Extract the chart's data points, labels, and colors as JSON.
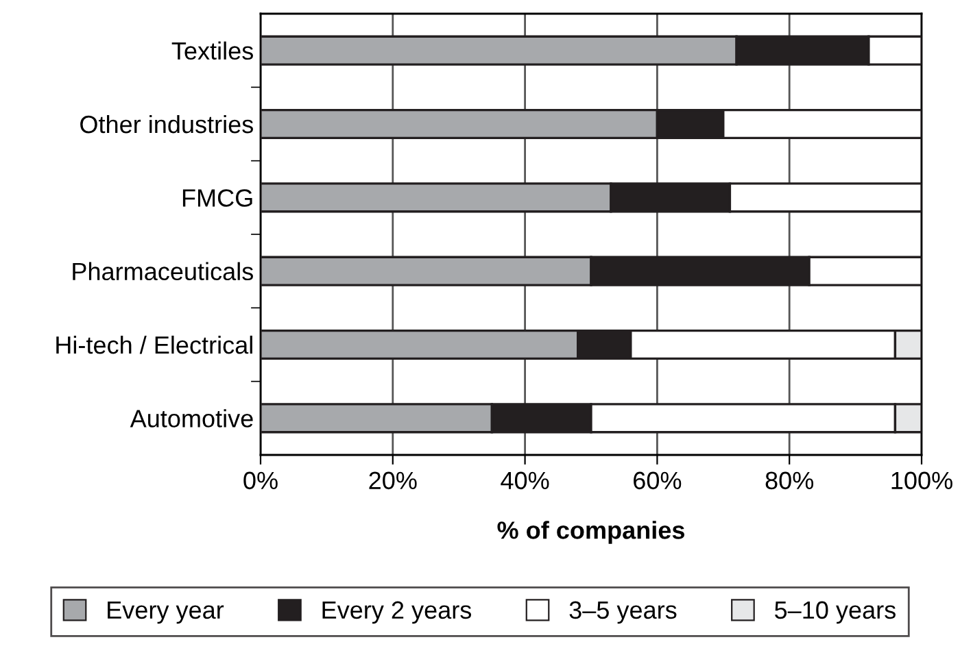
{
  "chart_data": {
    "type": "bar",
    "orientation": "horizontal",
    "stacked": true,
    "xlabel": "% of companies",
    "categories": [
      "Textiles",
      "Other industries",
      "FMCG",
      "Pharmaceuticals",
      "Hi-tech / Electrical",
      "Automotive"
    ],
    "series": [
      {
        "name": "Every year",
        "color": "#a7a9ac",
        "values": [
          72,
          60,
          53,
          50,
          48,
          35
        ]
      },
      {
        "name": "Every 2 years",
        "color": "#231f20",
        "values": [
          20,
          10,
          18,
          33,
          8,
          15
        ]
      },
      {
        "name": "3–5 years",
        "color": "#ffffff",
        "values": [
          8,
          30,
          29,
          17,
          40,
          46
        ]
      },
      {
        "name": "5–10 years",
        "color": "#e6e7e8",
        "values": [
          null,
          null,
          null,
          null,
          4,
          4
        ]
      }
    ],
    "xlim": [
      0,
      100
    ],
    "xticks": [
      {
        "value": 0,
        "label": "0%"
      },
      {
        "value": 20,
        "label": "20%"
      },
      {
        "value": 40,
        "label": "40%"
      },
      {
        "value": 60,
        "label": "60%"
      },
      {
        "value": 80,
        "label": "80%"
      },
      {
        "value": 100,
        "label": "100%"
      }
    ],
    "grid": "x",
    "legend": "bottom"
  }
}
